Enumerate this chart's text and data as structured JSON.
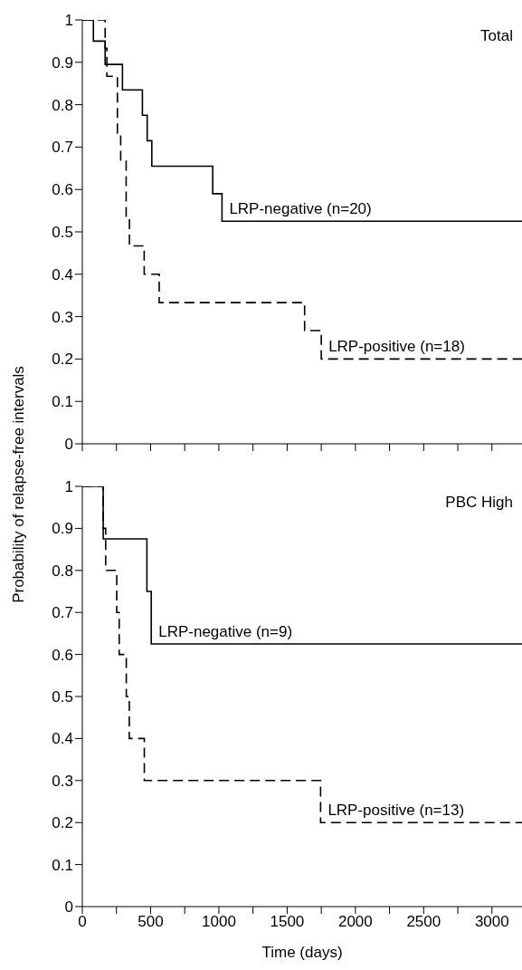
{
  "chart_data": [
    {
      "type": "step",
      "title": "Total",
      "ylabel": "Probability of relapse-free intervals",
      "xlim": [
        0,
        3220
      ],
      "ylim": [
        0,
        1
      ],
      "xticks": [
        0,
        {
          "value": 250,
          "label": null
        },
        {
          "value": 500,
          "label": null
        },
        {
          "value": 750,
          "label": null
        },
        {
          "value": 1000,
          "label": null
        },
        {
          "value": 1250,
          "label": null
        },
        {
          "value": 1500,
          "label": null
        },
        {
          "value": 1750,
          "label": null
        },
        {
          "value": 2000,
          "label": null
        },
        {
          "value": 2250,
          "label": null
        },
        {
          "value": 2500,
          "label": null
        },
        {
          "value": 2750,
          "label": null
        },
        {
          "value": 3000,
          "label": null
        }
      ],
      "yticks": [
        0,
        0.1,
        0.2,
        0.3,
        0.4,
        0.5,
        0.6,
        0.7,
        0.8,
        0.9,
        1
      ],
      "tick_labels": "y",
      "marker": "none",
      "series": [
        {
          "name": "LRP-negative (n=20)",
          "color": "#000000",
          "line_style": "solid",
          "x": [
            0,
            81,
            167,
            294,
            440,
            475,
            509,
            955,
            1023,
            3220
          ],
          "values": [
            1,
            0.95,
            0.895,
            0.835,
            0.775,
            0.715,
            0.655,
            0.59,
            0.525,
            0.525
          ]
        },
        {
          "name": "LRP-positive (n=18)",
          "color": "#000000",
          "line_style": "dashed",
          "x": [
            0,
            167,
            180,
            257,
            281,
            321,
            345,
            453,
            563,
            1628,
            1750,
            3220
          ],
          "values": [
            1,
            0.933,
            0.867,
            0.733,
            0.667,
            0.533,
            0.467,
            0.4,
            0.333,
            0.267,
            0.2,
            0.2
          ]
        }
      ]
    },
    {
      "type": "step",
      "title": "PBC High",
      "xlabel": "Time (days)",
      "xlim": [
        0,
        3220
      ],
      "ylim": [
        0,
        1
      ],
      "xticks": [
        0,
        {
          "value": 250,
          "label": null
        },
        500,
        {
          "value": 750,
          "label": null
        },
        1000,
        {
          "value": 1250,
          "label": null
        },
        1500,
        {
          "value": 1750,
          "label": null
        },
        2000,
        {
          "value": 2250,
          "label": null
        },
        2500,
        {
          "value": 2750,
          "label": null
        },
        3000
      ],
      "yticks": [
        0,
        0.1,
        0.2,
        0.3,
        0.4,
        0.5,
        0.6,
        0.7,
        0.8,
        0.9,
        1
      ],
      "marker": "none",
      "series": [
        {
          "name": "LRP-negative (n=9)",
          "color": "#000000",
          "line_style": "solid",
          "x": [
            0,
            153,
            473,
            505,
            3220
          ],
          "values": [
            1,
            0.875,
            0.75,
            0.625,
            0.625
          ]
        },
        {
          "name": "LRP-positive (n=13)",
          "color": "#000000",
          "line_style": "dashed",
          "x": [
            0,
            153,
            171,
            252,
            270,
            322,
            344,
            454,
            1745,
            3220
          ],
          "values": [
            1,
            0.9,
            0.8,
            0.7,
            0.6,
            0.5,
            0.4,
            0.3,
            0.2,
            0.2
          ]
        }
      ]
    }
  ]
}
